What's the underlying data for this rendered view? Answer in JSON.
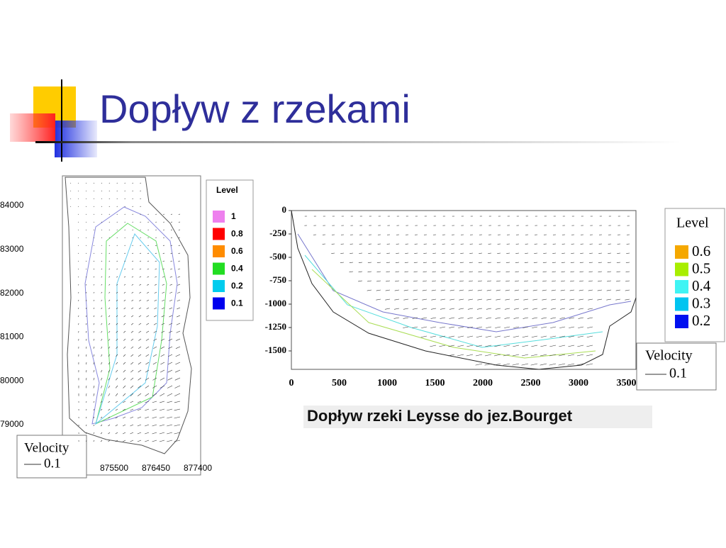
{
  "title": "Dopływ z rzekami",
  "figure_left": {
    "yticks": [
      "84000",
      "83000",
      "82000",
      "81000",
      "80000",
      "79000"
    ],
    "xticks": [
      "875500",
      "876450",
      "877400"
    ],
    "legend": {
      "title": "Level",
      "items": [
        {
          "label": "1",
          "color": "#ee80ee"
        },
        {
          "label": "0.8",
          "color": "#ff0000"
        },
        {
          "label": "0.6",
          "color": "#ff8c00"
        },
        {
          "label": "0.4",
          "color": "#22dd22"
        },
        {
          "label": "0.2",
          "color": "#00ccee"
        },
        {
          "label": "0.1",
          "color": "#0000ee"
        }
      ]
    },
    "velocity": {
      "title": "Velocity",
      "value": "0.1"
    }
  },
  "figure_right": {
    "yticks": [
      "0",
      "-250",
      "-500",
      "-750",
      "-1000",
      "-1250",
      "-1500"
    ],
    "xticks": [
      "0",
      "500",
      "1000",
      "1500",
      "2000",
      "2500",
      "3000",
      "3500"
    ],
    "legend": {
      "title": "Level",
      "items": [
        {
          "label": "0.6",
          "color": "#f5a800"
        },
        {
          "label": "0.5",
          "color": "#a8ee00"
        },
        {
          "label": "0.4",
          "color": "#40f4f4"
        },
        {
          "label": "0.3",
          "color": "#00c4f0"
        },
        {
          "label": "0.2",
          "color": "#0010f0"
        }
      ]
    },
    "velocity": {
      "title": "Velocity",
      "value": "0.1"
    }
  },
  "caption": "Dopływ rzeki Leysse do jez.Bourget"
}
